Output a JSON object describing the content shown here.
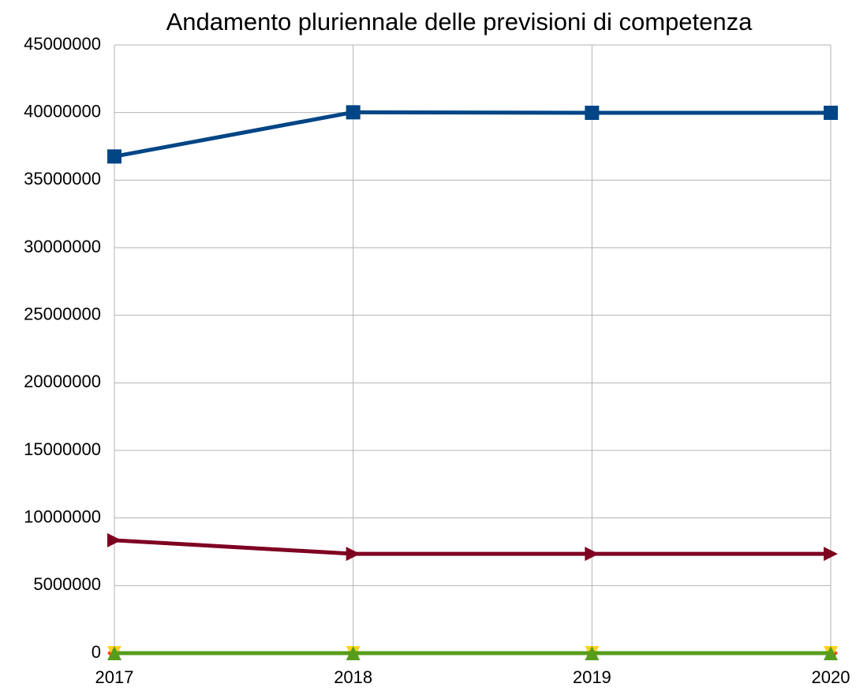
{
  "chart_data": {
    "type": "line",
    "title": "Andamento pluriennale delle previsioni di competenza",
    "categories": [
      "2017",
      "2018",
      "2019",
      "2020"
    ],
    "series": [
      {
        "color": "#004586",
        "marker": "square",
        "values": [
          36750000,
          40020000,
          39980000,
          39980000
        ]
      },
      {
        "color": "#ff420e",
        "marker": "diamond",
        "values": [
          0,
          0,
          0,
          0
        ]
      },
      {
        "color": "#ffd320",
        "marker": "triangle-down",
        "values": [
          0,
          0,
          0,
          0
        ]
      },
      {
        "color": "#579d1c",
        "marker": "triangle-up",
        "values": [
          0,
          0,
          0,
          0
        ]
      },
      {
        "color": "#7e0021",
        "marker": "triangle-right",
        "values": [
          8350000,
          7350000,
          7350000,
          7350000
        ]
      }
    ],
    "ylim": [
      0,
      45000000
    ],
    "yticks": [
      0,
      5000000,
      10000000,
      15000000,
      20000000,
      25000000,
      30000000,
      35000000,
      40000000,
      45000000
    ],
    "grid": true
  }
}
